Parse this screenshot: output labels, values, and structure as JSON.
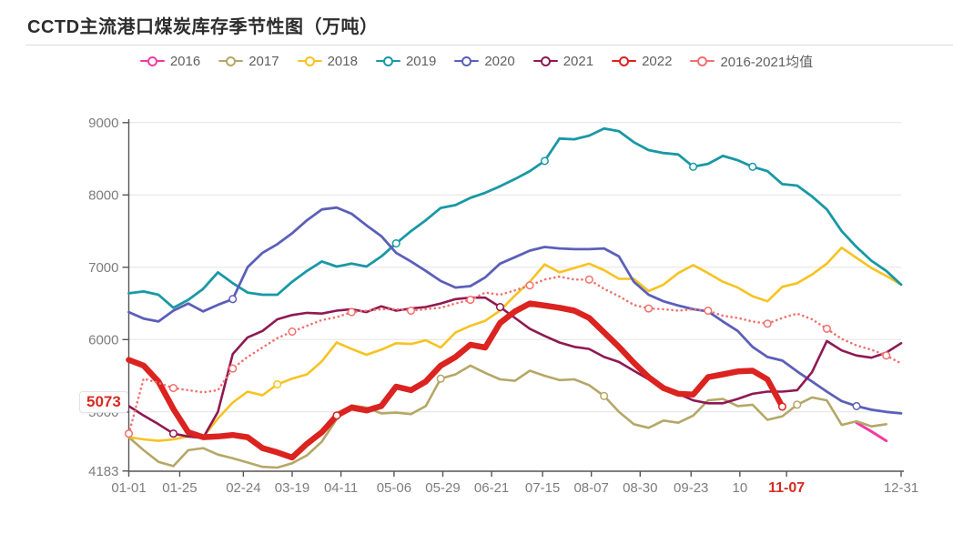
{
  "header": {
    "title": "CCTD主流港口煤炭库存季节性图（万吨）"
  },
  "legend": {
    "items": [
      {
        "label": "2016",
        "color": "#f13ba2"
      },
      {
        "label": "2017",
        "color": "#b5a767"
      },
      {
        "label": "2018",
        "color": "#f8c220"
      },
      {
        "label": "2019",
        "color": "#1898a6"
      },
      {
        "label": "2020",
        "color": "#5b5fb9"
      },
      {
        "label": "2021",
        "color": "#8e1952"
      },
      {
        "label": "2022",
        "color": "#db2320"
      },
      {
        "label": "2016-2021均值",
        "color": "#f2706d"
      }
    ]
  },
  "annotations": {
    "latest_value_label": "5073",
    "latest_date_label": "11-07",
    "highlight_color": "#d62b22"
  },
  "colors": {
    "grid": "#e4e4e4",
    "axis": "#555555",
    "tick_label": "#7d7d7d"
  },
  "chart_data": {
    "type": "line",
    "title": "CCTD主流港口煤炭库存季节性图（万吨）",
    "ylim": [
      4183,
      9000
    ],
    "grid": "horizontal-only",
    "legend_position": "top",
    "x_unit": "weekly points, day-of-year",
    "n_points": 53,
    "x_ticks": [
      {
        "label": "01-01",
        "day": 1
      },
      {
        "label": "01-25",
        "day": 25
      },
      {
        "label": "02-24",
        "day": 55
      },
      {
        "label": "03-19",
        "day": 78
      },
      {
        "label": "04-11",
        "day": 101
      },
      {
        "label": "05-06",
        "day": 126
      },
      {
        "label": "05-29",
        "day": 149
      },
      {
        "label": "06-21",
        "day": 172
      },
      {
        "label": "07-15",
        "day": 196
      },
      {
        "label": "08-07",
        "day": 219
      },
      {
        "label": "08-30",
        "day": 242
      },
      {
        "label": "09-23",
        "day": 266
      },
      {
        "label": "10",
        "day": 289
      },
      {
        "label": "11-07",
        "day": 311,
        "highlight": true
      },
      {
        "label": "12-31",
        "day": 365
      }
    ],
    "y_ticks": [
      {
        "value": 4183,
        "label": "4183"
      },
      {
        "value": 5000,
        "label": "5000"
      },
      {
        "value": 6000,
        "label": "6000"
      },
      {
        "value": 7000,
        "label": "7000"
      },
      {
        "value": 8000,
        "label": "8000"
      },
      {
        "value": 9000,
        "label": "9000"
      }
    ],
    "series": [
      {
        "name": "2016",
        "color": "#f13ba2",
        "width": 3,
        "style": "solid",
        "markers": [],
        "values": [
          null,
          null,
          null,
          null,
          null,
          null,
          null,
          null,
          null,
          null,
          null,
          null,
          null,
          null,
          null,
          null,
          null,
          null,
          null,
          null,
          null,
          null,
          null,
          null,
          null,
          null,
          null,
          null,
          null,
          null,
          null,
          null,
          null,
          null,
          null,
          null,
          null,
          null,
          null,
          null,
          null,
          null,
          null,
          null,
          null,
          null,
          null,
          null,
          null,
          4850,
          4730,
          4600,
          null
        ]
      },
      {
        "name": "2017",
        "color": "#b5a767",
        "width": 2.6,
        "style": "solid",
        "markers": [
          21,
          32,
          45
        ],
        "values": [
          4650,
          4470,
          4310,
          4250,
          4470,
          4500,
          4410,
          4360,
          4300,
          4240,
          4230,
          4290,
          4400,
          4590,
          4900,
          5090,
          5060,
          4980,
          4990,
          4970,
          5080,
          5460,
          5520,
          5640,
          5540,
          5450,
          5430,
          5570,
          5500,
          5440,
          5450,
          5370,
          5220,
          5000,
          4830,
          4780,
          4880,
          4850,
          4950,
          5160,
          5180,
          5080,
          5100,
          4890,
          4940,
          5100,
          5200,
          5160,
          4820,
          4870,
          4800,
          4830,
          null
        ]
      },
      {
        "name": "2018",
        "color": "#f8c220",
        "width": 2.6,
        "style": "solid",
        "markers": [
          10
        ],
        "values": [
          4650,
          4620,
          4600,
          4620,
          4660,
          4650,
          4910,
          5130,
          5280,
          5230,
          5380,
          5460,
          5520,
          5700,
          5960,
          5870,
          5790,
          5860,
          5950,
          5940,
          5990,
          5890,
          6100,
          6190,
          6260,
          6400,
          6610,
          6800,
          7040,
          6930,
          6990,
          7050,
          6960,
          6840,
          6840,
          6670,
          6760,
          6920,
          7030,
          6920,
          6800,
          6720,
          6600,
          6530,
          6730,
          6780,
          6900,
          7050,
          7270,
          7130,
          6990,
          6880,
          6760
        ]
      },
      {
        "name": "2019",
        "color": "#1898a6",
        "width": 2.8,
        "style": "solid",
        "markers": [
          18,
          28,
          38,
          42
        ],
        "values": [
          6640,
          6665,
          6620,
          6440,
          6550,
          6700,
          6930,
          6780,
          6650,
          6620,
          6620,
          6800,
          6950,
          7080,
          7010,
          7050,
          7010,
          7150,
          7330,
          7500,
          7650,
          7820,
          7860,
          7960,
          8030,
          8120,
          8220,
          8330,
          8470,
          8780,
          8770,
          8820,
          8920,
          8880,
          8730,
          8620,
          8580,
          8560,
          8390,
          8430,
          8540,
          8480,
          8390,
          8330,
          8150,
          8130,
          7980,
          7800,
          7500,
          7280,
          7090,
          6950,
          6760
        ]
      },
      {
        "name": "2020",
        "color": "#5b5fb9",
        "width": 2.8,
        "style": "solid",
        "markers": [
          7,
          49
        ],
        "values": [
          6380,
          6290,
          6250,
          6400,
          6500,
          6390,
          6480,
          6560,
          7000,
          7200,
          7320,
          7470,
          7650,
          7800,
          7825,
          7740,
          7580,
          7430,
          7200,
          7080,
          6950,
          6810,
          6720,
          6740,
          6860,
          7050,
          7140,
          7230,
          7280,
          7260,
          7250,
          7250,
          7260,
          7150,
          6800,
          6620,
          6530,
          6470,
          6420,
          6390,
          6250,
          6120,
          5900,
          5760,
          5710,
          5560,
          5420,
          5280,
          5150,
          5080,
          5030,
          5000,
          4980
        ]
      },
      {
        "name": "2021",
        "color": "#8e1952",
        "width": 2.6,
        "style": "solid",
        "markers": [
          3,
          25
        ],
        "values": [
          5080,
          4950,
          4830,
          4700,
          4660,
          4640,
          5000,
          5800,
          6030,
          6120,
          6280,
          6340,
          6370,
          6360,
          6400,
          6420,
          6380,
          6460,
          6400,
          6430,
          6450,
          6500,
          6560,
          6580,
          6580,
          6450,
          6300,
          6150,
          6050,
          5960,
          5900,
          5870,
          5760,
          5690,
          5570,
          5450,
          5350,
          5250,
          5160,
          5120,
          5120,
          5180,
          5250,
          5280,
          5280,
          5300,
          5550,
          5980,
          5850,
          5780,
          5750,
          5820,
          5950
        ]
      },
      {
        "name": "2022",
        "color": "#db2320",
        "width": 6.5,
        "style": "solid",
        "markers": [
          14,
          44
        ],
        "values": [
          5720,
          5640,
          5420,
          5040,
          4720,
          4650,
          4660,
          4680,
          4650,
          4500,
          4440,
          4370,
          4560,
          4720,
          4950,
          5060,
          5020,
          5080,
          5350,
          5300,
          5420,
          5640,
          5760,
          5930,
          5890,
          6230,
          6390,
          6500,
          6470,
          6440,
          6400,
          6300,
          6100,
          5900,
          5680,
          5480,
          5330,
          5250,
          5240,
          5480,
          5520,
          5560,
          5570,
          5450,
          5073,
          null,
          null,
          null,
          null,
          null,
          null,
          null,
          null
        ]
      },
      {
        "name": "2016-2021均值",
        "color": "#f2706d",
        "width": 2.6,
        "style": "dotted",
        "markers": [
          0,
          3,
          7,
          11,
          15,
          19,
          23,
          27,
          31,
          35,
          39,
          43,
          47,
          51
        ],
        "values": [
          4700,
          5460,
          5400,
          5330,
          5300,
          5270,
          5300,
          5600,
          5760,
          5890,
          6020,
          6110,
          6190,
          6270,
          6310,
          6380,
          6400,
          6420,
          6420,
          6400,
          6420,
          6440,
          6500,
          6550,
          6650,
          6620,
          6680,
          6750,
          6830,
          6870,
          6830,
          6830,
          6700,
          6600,
          6480,
          6430,
          6420,
          6400,
          6420,
          6400,
          6330,
          6300,
          6250,
          6220,
          6300,
          6360,
          6280,
          6150,
          6010,
          5920,
          5860,
          5780,
          5670
        ]
      }
    ]
  }
}
